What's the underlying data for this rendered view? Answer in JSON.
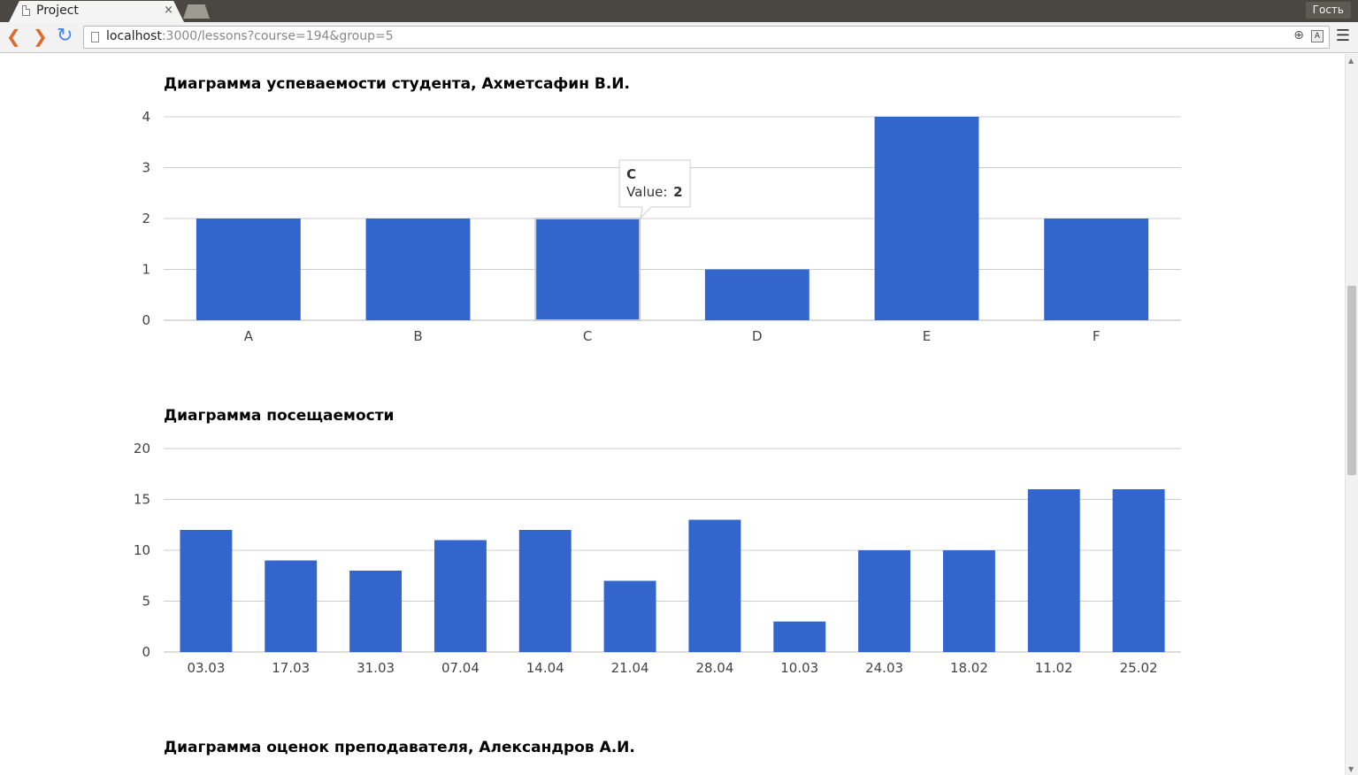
{
  "browser": {
    "tab_title": "Project",
    "tab_close": "×",
    "guest_label": "Гость",
    "url_host": "localhost",
    "url_rest": ":3000/lessons?course=194&group=5",
    "icons": {
      "back": "back-arrow-icon",
      "forward": "forward-arrow-icon",
      "reload": "reload-icon",
      "zoom": "zoom-icon",
      "translate": "translate-icon",
      "menu": "hamburger-menu-icon"
    }
  },
  "charts": {
    "performance": {
      "title": "Диаграмма успеваемости студента, Ахметсафин В.И.",
      "tooltip": {
        "category": "C",
        "label": "Value:",
        "value": "2"
      }
    },
    "attendance": {
      "title": "Диаграмма посещаемости"
    },
    "teacher": {
      "title": "Диаграмма оценок преподавателя, Александров А.И."
    }
  },
  "chart_data": [
    {
      "type": "bar",
      "title": "Диаграмма успеваемости студента, Ахметсафин В.И.",
      "categories": [
        "A",
        "B",
        "C",
        "D",
        "E",
        "F"
      ],
      "values": [
        2,
        2,
        2,
        1,
        4,
        2
      ],
      "ylim": [
        0,
        4
      ],
      "yticks": [
        0,
        1,
        2,
        3,
        4
      ],
      "grid": true,
      "color": "#3366cc",
      "highlighted": "C"
    },
    {
      "type": "bar",
      "title": "Диаграмма посещаемости",
      "categories": [
        "03.03",
        "17.03",
        "31.03",
        "07.04",
        "14.04",
        "21.04",
        "28.04",
        "10.03",
        "24.03",
        "18.02",
        "11.02",
        "25.02"
      ],
      "values": [
        12,
        9,
        8,
        11,
        12,
        7,
        13,
        3,
        10,
        10,
        16,
        16
      ],
      "ylim": [
        0,
        20
      ],
      "yticks": [
        0,
        5,
        10,
        15,
        20
      ],
      "grid": true,
      "color": "#3366cc"
    }
  ]
}
